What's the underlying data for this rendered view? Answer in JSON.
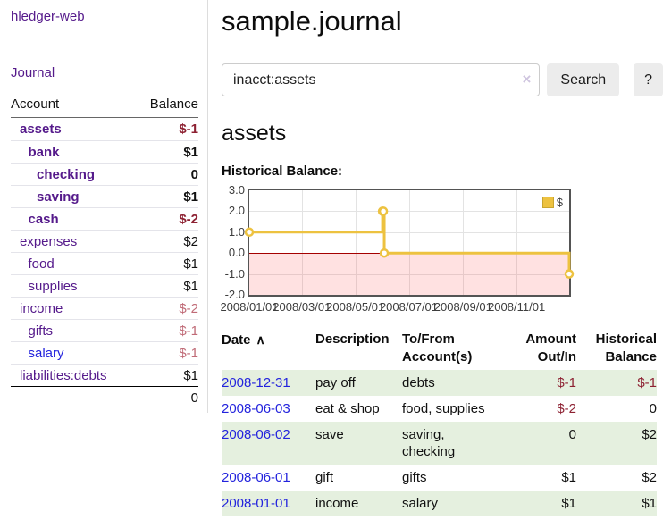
{
  "colors": {
    "link_purple": "#551a8b",
    "link_blue": "#2323dd",
    "negative_strong": "#8d2132",
    "negative_soft": "#c06b77",
    "row_green": "#e5f0df",
    "chart_line": "#edc240",
    "chart_negative_fill": "rgba(255,70,70,0.16)",
    "chart_zero_line": "#a40000"
  },
  "sidebar": {
    "app_title": "hledger-web",
    "nav": {
      "journal": "Journal"
    },
    "accounts_header": {
      "account": "Account",
      "balance": "Balance"
    },
    "accounts": [
      {
        "label": "assets",
        "level": 0,
        "bold": true,
        "balance": "$-1",
        "tone": "neg-strong"
      },
      {
        "label": "bank",
        "level": 1,
        "bold": true,
        "balance": "$1",
        "tone": "normal"
      },
      {
        "label": "checking",
        "level": 2,
        "bold": true,
        "balance": "0",
        "tone": "normal"
      },
      {
        "label": "saving",
        "level": 2,
        "bold": true,
        "balance": "$1",
        "tone": "normal"
      },
      {
        "label": "cash",
        "level": 1,
        "bold": true,
        "balance": "$-2",
        "tone": "neg-strong"
      },
      {
        "label": "expenses",
        "level": 0,
        "bold": false,
        "balance": "$2",
        "tone": "normal"
      },
      {
        "label": "food",
        "level": 1,
        "bold": false,
        "balance": "$1",
        "tone": "normal"
      },
      {
        "label": "supplies",
        "level": 1,
        "bold": false,
        "balance": "$1",
        "tone": "normal"
      },
      {
        "label": "income",
        "level": 0,
        "bold": false,
        "balance": "$-2",
        "tone": "neg-soft"
      },
      {
        "label": "gifts",
        "level": 1,
        "bold": false,
        "balance": "$-1",
        "tone": "neg-soft"
      },
      {
        "label": "salary",
        "level": 1,
        "bold": false,
        "balance": "$-1",
        "tone": "neg-soft",
        "link_color": "blue"
      },
      {
        "label": "liabilities:debts",
        "level": 0,
        "bold": false,
        "balance": "$1",
        "tone": "normal"
      }
    ],
    "total": "0"
  },
  "header": {
    "title": "sample.journal"
  },
  "search": {
    "value": "inacct:assets",
    "clear_icon": "×",
    "button": "Search",
    "help_button": "?"
  },
  "account_page": {
    "heading": "assets",
    "chart_title": "Historical Balance:"
  },
  "chart_data": {
    "type": "line",
    "step": true,
    "title": "Historical Balance:",
    "x_range": [
      "2008-01-01",
      "2008-12-31"
    ],
    "ylim": [
      -2,
      3
    ],
    "y_ticks": [
      "3.0",
      "2.0",
      "1.0",
      "0.0",
      "-1.0",
      "-2.0"
    ],
    "x_ticks": [
      {
        "label": "2008/01/01",
        "date": "2008-01-01"
      },
      {
        "label": "2008/03/01",
        "date": "2008-03-01"
      },
      {
        "label": "2008/05/01",
        "date": "2008-05-01"
      },
      {
        "label": "2008/07/01",
        "date": "2008-07-01"
      },
      {
        "label": "2008/09/01",
        "date": "2008-09-01"
      },
      {
        "label": "2008/11/01",
        "date": "2008-11-01"
      }
    ],
    "series": [
      {
        "name": "$",
        "color": "#edc240",
        "points": [
          {
            "date": "2008-01-01",
            "value": 1
          },
          {
            "date": "2008-06-01",
            "value": 2
          },
          {
            "date": "2008-06-02",
            "value": 2
          },
          {
            "date": "2008-06-03",
            "value": 0
          },
          {
            "date": "2008-12-31",
            "value": -1
          }
        ]
      }
    ],
    "legend": {
      "label": "$",
      "position": "top-right"
    },
    "negative_region": {
      "from": -2,
      "to": 0
    },
    "grid": true
  },
  "register": {
    "columns": [
      {
        "label": "Date",
        "align": "left",
        "sorted": "asc"
      },
      {
        "label": "Description",
        "align": "left"
      },
      {
        "label": "To/From Account(s)",
        "align": "left"
      },
      {
        "label": "Amount Out/In",
        "align": "right"
      },
      {
        "label": "Historical Balance",
        "align": "right"
      }
    ],
    "sort_icon": "∧",
    "rows": [
      {
        "date": "2008-12-31",
        "description": "pay off",
        "accounts": "debts",
        "amount": "$-1",
        "amount_negative": true,
        "balance": "$-1",
        "balance_negative": true,
        "shaded": true
      },
      {
        "date": "2008-06-03",
        "description": "eat & shop",
        "accounts": "food, supplies",
        "amount": "$-2",
        "amount_negative": true,
        "balance": "0",
        "balance_negative": false,
        "shaded": false
      },
      {
        "date": "2008-06-02",
        "description": "save",
        "accounts": "saving, checking",
        "amount": "0",
        "amount_negative": false,
        "balance": "$2",
        "balance_negative": false,
        "shaded": true
      },
      {
        "date": "2008-06-01",
        "description": "gift",
        "accounts": "gifts",
        "amount": "$1",
        "amount_negative": false,
        "balance": "$2",
        "balance_negative": false,
        "shaded": false
      },
      {
        "date": "2008-01-01",
        "description": "income",
        "accounts": "salary",
        "amount": "$1",
        "amount_negative": false,
        "balance": "$1",
        "balance_negative": false,
        "shaded": true
      }
    ]
  }
}
